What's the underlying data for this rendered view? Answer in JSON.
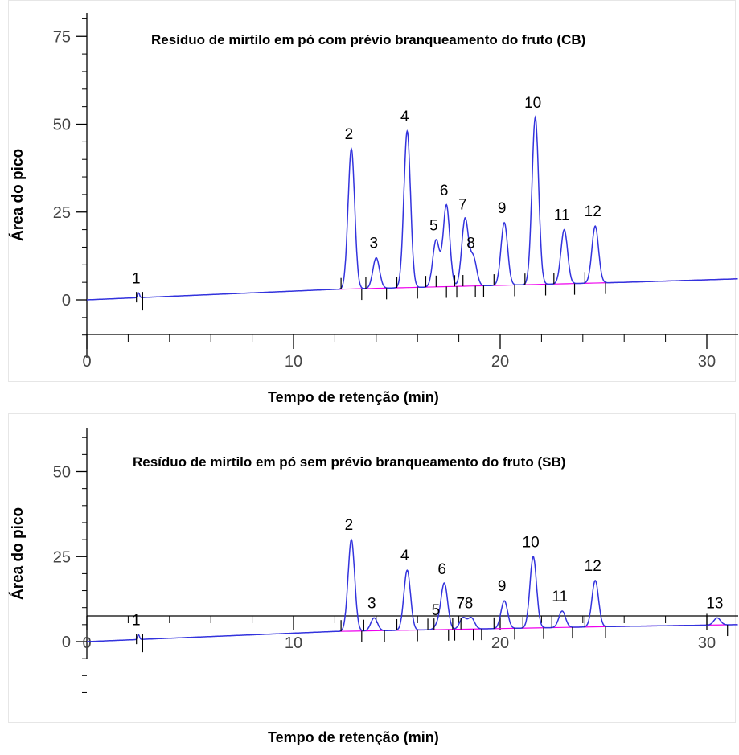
{
  "chart_data": [
    {
      "type": "line",
      "title": "Resíduo de mirtilo em pó com prévio branqueamento do fruto (CB)",
      "xlabel": "Tempo de retenção (min)",
      "ylabel": "Área do pico",
      "xlim": [
        0,
        31.5
      ],
      "ylim": [
        -10,
        80
      ],
      "xticks": [
        0,
        10,
        20,
        30
      ],
      "xtick_labels": [
        "0",
        "10",
        "20",
        "30"
      ],
      "yticks": [
        75,
        50,
        25,
        0
      ],
      "ytick_labels": [
        "75",
        "50",
        "25",
        "0"
      ],
      "baseline": [
        [
          0,
          0
        ],
        [
          12,
          3
        ],
        [
          26,
          5
        ],
        [
          31.5,
          6
        ]
      ],
      "peaks": [
        {
          "label": "1",
          "x": 2.5,
          "y": 2
        },
        {
          "label": "2",
          "x": 12.8,
          "y": 43
        },
        {
          "label": "3",
          "x": 14.0,
          "y": 12
        },
        {
          "label": "4",
          "x": 15.5,
          "y": 48
        },
        {
          "label": "5",
          "x": 16.9,
          "y": 17
        },
        {
          "label": "6",
          "x": 17.4,
          "y": 27
        },
        {
          "label": "7",
          "x": 18.3,
          "y": 23
        },
        {
          "label": "8",
          "x": 18.7,
          "y": 12
        },
        {
          "label": "9",
          "x": 20.2,
          "y": 22
        },
        {
          "label": "10",
          "x": 21.7,
          "y": 52
        },
        {
          "label": "11",
          "x": 23.1,
          "y": 20
        },
        {
          "label": "12",
          "x": 24.6,
          "y": 21
        }
      ]
    },
    {
      "type": "line",
      "title": "Resíduo de mirtilo em pó sem prévio branqueamento do fruto (SB)",
      "xlabel": "Tempo de retenção (min)",
      "ylabel": "Área do pico",
      "xlim": [
        0,
        31.5
      ],
      "ylim": [
        -15,
        62
      ],
      "xticks": [
        0,
        10,
        20,
        30
      ],
      "xtick_labels": [
        "0",
        "10",
        "20",
        "30"
      ],
      "yticks": [
        50,
        25,
        0
      ],
      "ytick_labels": [
        "50",
        "25",
        "0"
      ],
      "baseline": [
        [
          0,
          0
        ],
        [
          12,
          3
        ],
        [
          26,
          4.5
        ],
        [
          31.5,
          5
        ]
      ],
      "peaks": [
        {
          "label": "1",
          "x": 2.5,
          "y": 2
        },
        {
          "label": "2",
          "x": 12.8,
          "y": 30
        },
        {
          "label": "3",
          "x": 13.9,
          "y": 7
        },
        {
          "label": "4",
          "x": 15.5,
          "y": 21
        },
        {
          "label": "5",
          "x": 17.0,
          "y": 5
        },
        {
          "label": "6",
          "x": 17.3,
          "y": 17
        },
        {
          "label": "7",
          "x": 18.2,
          "y": 7
        },
        {
          "label": "8",
          "x": 18.6,
          "y": 7
        },
        {
          "label": "9",
          "x": 20.2,
          "y": 12
        },
        {
          "label": "10",
          "x": 21.6,
          "y": 25
        },
        {
          "label": "11",
          "x": 23.0,
          "y": 9
        },
        {
          "label": "12",
          "x": 24.6,
          "y": 18
        },
        {
          "label": "13",
          "x": 30.5,
          "y": 7
        }
      ]
    }
  ]
}
